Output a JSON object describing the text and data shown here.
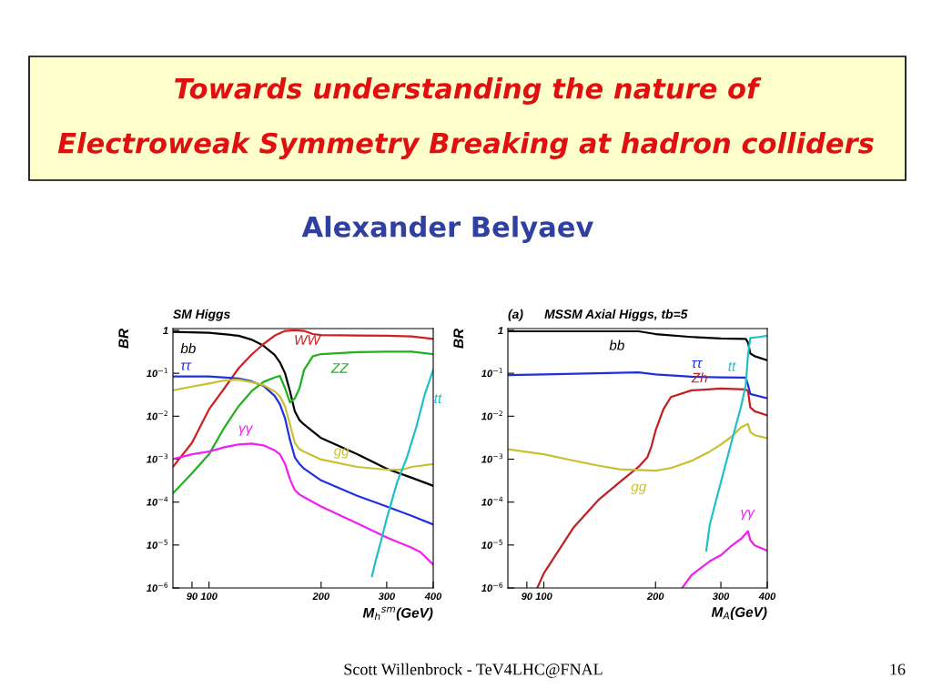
{
  "chart_data": [
    {
      "type": "line",
      "title": "SM Higgs",
      "xlabel": "M$_{h}$$^{sm}$(GeV)",
      "ylabel": "BR",
      "log": "xy",
      "grid": false,
      "legend": false,
      "marker": "none",
      "line_style": "solid",
      "xlim": [
        80,
        400
      ],
      "ylim": [
        1e-06,
        1.1
      ],
      "xticks": [
        90,
        100,
        200,
        300,
        400
      ],
      "yticks": [
        {
          "value": 1e-06,
          "label": "10$^{−6}$"
        },
        {
          "value": 1e-05,
          "label": "10$^{−5}$"
        },
        {
          "value": 0.0001,
          "label": "10$^{−4}$"
        },
        {
          "value": 0.001,
          "label": "10$^{−3}$"
        },
        {
          "value": 0.01,
          "label": "10$^{−2}$"
        },
        {
          "value": 0.1,
          "label": "10$^{−1}$"
        },
        1
      ],
      "series": [
        {
          "name": "bb",
          "color": "#000000",
          "x": [
            80,
            100,
            120,
            130,
            140,
            150,
            155,
            160,
            165,
            170,
            175,
            180,
            200,
            250,
            300,
            350,
            400
          ],
          "values": [
            0.92,
            0.88,
            0.75,
            0.61,
            0.44,
            0.27,
            0.18,
            0.1,
            0.038,
            0.013,
            0.0081,
            0.0064,
            0.0031,
            0.0013,
            0.0006,
            0.00037,
            0.00024
          ]
        },
        {
          "name": "WW",
          "color": "#d02020",
          "x": [
            80,
            90,
            100,
            110,
            120,
            130,
            140,
            150,
            160,
            170,
            180,
            190,
            200,
            250,
            300,
            350,
            400
          ],
          "values": [
            0.00066,
            0.0024,
            0.0145,
            0.045,
            0.13,
            0.27,
            0.48,
            0.75,
            0.97,
            1.0,
            0.97,
            0.82,
            0.78,
            0.76,
            0.75,
            0.72,
            0.63
          ]
        },
        {
          "name": "ZZ",
          "color": "#20b020",
          "x": [
            80,
            90,
            100,
            110,
            120,
            130,
            140,
            150,
            155,
            160,
            165,
            170,
            175,
            180,
            190,
            200,
            250,
            300,
            350,
            400
          ],
          "values": [
            0.00016,
            0.00047,
            0.0013,
            0.0055,
            0.017,
            0.038,
            0.063,
            0.08,
            0.087,
            0.045,
            0.021,
            0.026,
            0.045,
            0.12,
            0.25,
            0.28,
            0.31,
            0.32,
            0.32,
            0.28
          ]
        },
        {
          "name": "ττ",
          "color": "#2030e0",
          "x": [
            80,
            100,
            120,
            130,
            140,
            150,
            155,
            160,
            165,
            170,
            175,
            180,
            200,
            250,
            300,
            350,
            400
          ],
          "values": [
            0.084,
            0.084,
            0.076,
            0.065,
            0.051,
            0.03,
            0.019,
            0.0089,
            0.0028,
            0.0011,
            0.00077,
            0.0006,
            0.00032,
            0.00014,
            7.9e-05,
            4.8e-05,
            3e-05
          ]
        },
        {
          "name": "gg",
          "color": "#c8c030",
          "x": [
            80,
            90,
            100,
            110,
            120,
            130,
            140,
            150,
            155,
            160,
            165,
            170,
            175,
            180,
            200,
            250,
            300,
            330,
            350,
            400
          ],
          "values": [
            0.04,
            0.049,
            0.058,
            0.068,
            0.071,
            0.062,
            0.053,
            0.038,
            0.029,
            0.017,
            0.0064,
            0.0024,
            0.0017,
            0.0015,
            0.00098,
            0.00066,
            0.00057,
            0.00057,
            0.00066,
            0.00077
          ]
        },
        {
          "name": "γγ",
          "color": "#f020f0",
          "x": [
            80,
            90,
            100,
            110,
            120,
            130,
            140,
            150,
            155,
            160,
            165,
            170,
            175,
            180,
            200,
            250,
            300,
            350,
            370,
            400
          ],
          "values": [
            0.001,
            0.0013,
            0.0015,
            0.0019,
            0.0022,
            0.0023,
            0.0021,
            0.0016,
            0.0013,
            0.00077,
            0.00034,
            0.00019,
            0.00015,
            0.00013,
            7.9e-05,
            3.2e-05,
            1.5e-05,
            8.7e-06,
            6.8e-06,
            3.5e-06
          ]
        },
        {
          "name": "tt",
          "color": "#20c0c8",
          "x": [
            274,
            280,
            290,
            300,
            320,
            340,
            360,
            380,
            400
          ],
          "values": [
            1.9e-06,
            4.2e-06,
            1.3e-05,
            4.1e-05,
            0.00029,
            0.0011,
            0.0055,
            0.033,
            0.12
          ]
        }
      ],
      "annotations": [
        "Towards understanding the nature of",
        "Electroweak Symmetry Breaking at hadron colliders",
        "Alexander Belyaev",
        "Scott Willenbrock - TeV4LHC@FNAL",
        "16"
      ]
    },
    {
      "type": "line",
      "title": "(a)      MSSM Axial Higgs, tb=5",
      "xlabel": "M$_{A}$(GeV)",
      "ylabel": "BR",
      "log": "xy",
      "grid": false,
      "legend": false,
      "marker": "none",
      "line_style": "solid",
      "xlim": [
        80,
        400
      ],
      "ylim": [
        1e-06,
        1.1
      ],
      "xticks": [
        90,
        100,
        200,
        300,
        400
      ],
      "yticks": [
        {
          "value": 1e-06,
          "label": "10$^{−6}$"
        },
        {
          "value": 1e-05,
          "label": "10$^{−5}$"
        },
        {
          "value": 0.0001,
          "label": "10$^{−4}$"
        },
        {
          "value": 0.001,
          "label": "10$^{−3}$"
        },
        {
          "value": 0.01,
          "label": "10$^{−2}$"
        },
        {
          "value": 0.1,
          "label": "10$^{−1}$"
        },
        1
      ],
      "series": [
        {
          "name": "bb",
          "color": "#000000",
          "x": [
            80,
            100,
            150,
            180,
            200,
            250,
            300,
            350,
            355,
            360,
            370,
            400
          ],
          "values": [
            0.95,
            0.95,
            0.95,
            0.95,
            0.82,
            0.7,
            0.65,
            0.63,
            0.52,
            0.29,
            0.25,
            0.2
          ]
        },
        {
          "name": "ττ",
          "color": "#2030e0",
          "x": [
            80,
            100,
            180,
            200,
            250,
            300,
            350,
            355,
            360,
            400
          ],
          "values": [
            0.091,
            0.094,
            0.105,
            0.094,
            0.083,
            0.08,
            0.079,
            0.053,
            0.033,
            0.026
          ]
        },
        {
          "name": "Zh",
          "color": "#c02020",
          "x": [
            96,
            100,
            120,
            140,
            160,
            180,
            190,
            195,
            200,
            210,
            220,
            250,
            300,
            350,
            355,
            360,
            370,
            400
          ],
          "values": [
            1e-06,
            2.2e-06,
            2.5e-05,
            0.00011,
            0.00029,
            0.00066,
            0.0011,
            0.002,
            0.0046,
            0.0145,
            0.028,
            0.04,
            0.044,
            0.042,
            0.038,
            0.016,
            0.013,
            0.0105
          ]
        },
        {
          "name": "gg",
          "color": "#c8c030",
          "x": [
            80,
            100,
            120,
            140,
            160,
            180,
            200,
            220,
            250,
            280,
            300,
            320,
            340,
            355,
            360,
            370,
            400
          ],
          "values": [
            0.0017,
            0.0013,
            0.00093,
            0.00071,
            0.00058,
            0.00056,
            0.00054,
            0.00062,
            0.00091,
            0.0015,
            0.0022,
            0.0033,
            0.0055,
            0.0066,
            0.0043,
            0.0036,
            0.0031
          ]
        },
        {
          "name": "tt",
          "color": "#20c0c8",
          "x": [
            274,
            280,
            300,
            320,
            340,
            350,
            355,
            360,
            380,
            400
          ],
          "values": [
            7.4e-06,
            3e-05,
            0.00029,
            0.0024,
            0.017,
            0.053,
            0.27,
            0.66,
            0.7,
            0.75
          ]
        },
        {
          "name": "γγ",
          "color": "#f020f0",
          "x": [
            236,
            250,
            280,
            300,
            320,
            340,
            355,
            360,
            370,
            400
          ],
          "values": [
            1e-06,
            2e-06,
            4.2e-06,
            5.8e-06,
            9.5e-06,
            1.4e-05,
            2.1e-05,
            1.3e-05,
            9.8e-06,
            7.4e-06
          ]
        }
      ]
    }
  ]
}
